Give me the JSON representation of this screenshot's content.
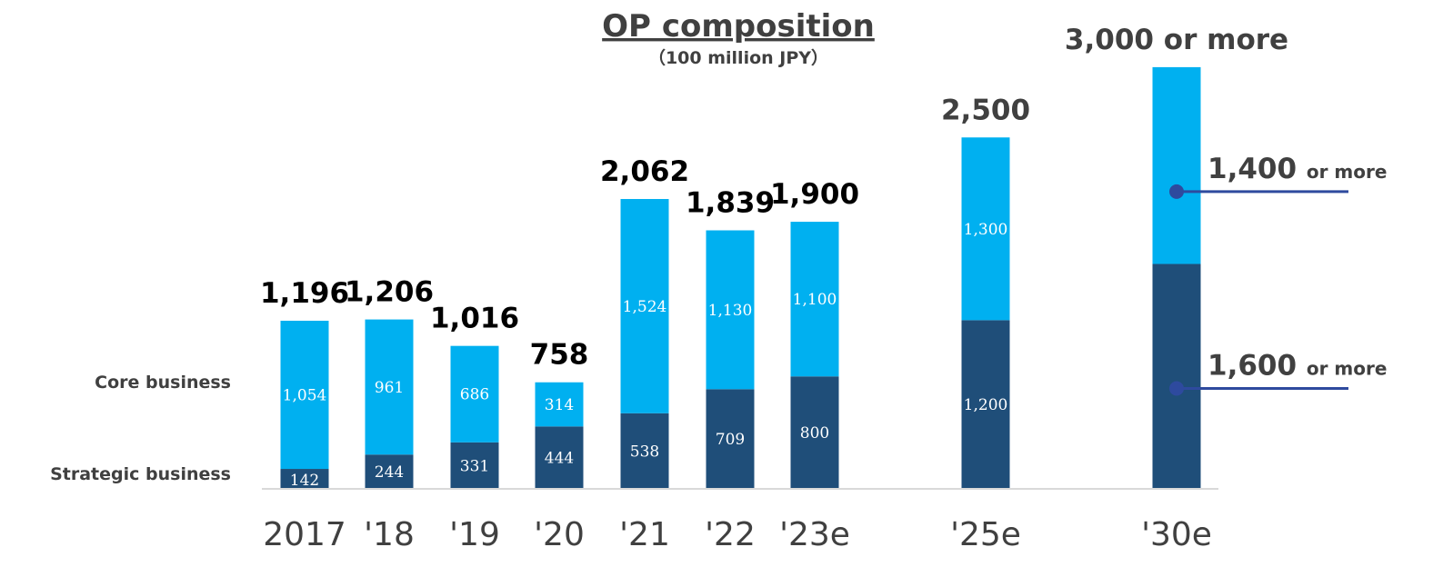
{
  "chart_data": {
    "type": "bar",
    "stacked": true,
    "title": "OP composition",
    "subtitle": "（100 million JPY）",
    "categories": [
      "2017",
      "'18",
      "'19",
      "'20",
      "'21",
      "'22",
      "'23e",
      "'25e",
      "'30e"
    ],
    "series": [
      {
        "name": "Strategic business",
        "color": "#1F4E79",
        "values": [
          142,
          244,
          331,
          444,
          538,
          709,
          800,
          1200,
          1600
        ],
        "labels": [
          "142",
          "244",
          "331",
          "444",
          "538",
          "709",
          "800",
          "1,200",
          ""
        ]
      },
      {
        "name": "Core business",
        "color": "#00B0F0",
        "values": [
          1054,
          961,
          686,
          314,
          1524,
          1130,
          1100,
          1300,
          1400
        ],
        "labels": [
          "1,054",
          "961",
          "686",
          "314",
          "1,524",
          "1,130",
          "1,100",
          "1,300",
          ""
        ]
      }
    ],
    "totals": [
      "1,196",
      "1,206",
      "1,016",
      "758",
      "2,062",
      "1,839",
      "1,900",
      "2,500",
      "3,000 or more"
    ],
    "annotations": [
      {
        "series": "Core business",
        "value": "1,400",
        "suffix": "or more"
      },
      {
        "series": "Strategic business",
        "value": "1,600",
        "suffix": "or more"
      }
    ],
    "ylim": [
      0,
      3000
    ],
    "grid": false,
    "legend": "left"
  },
  "colors": {
    "strategic": "#1F4E79",
    "core": "#00B0F0",
    "annotation_line": "#2E4A9E",
    "axis": "#D9D9D9",
    "total_text": "#000000",
    "total_text_late": "#404040"
  }
}
